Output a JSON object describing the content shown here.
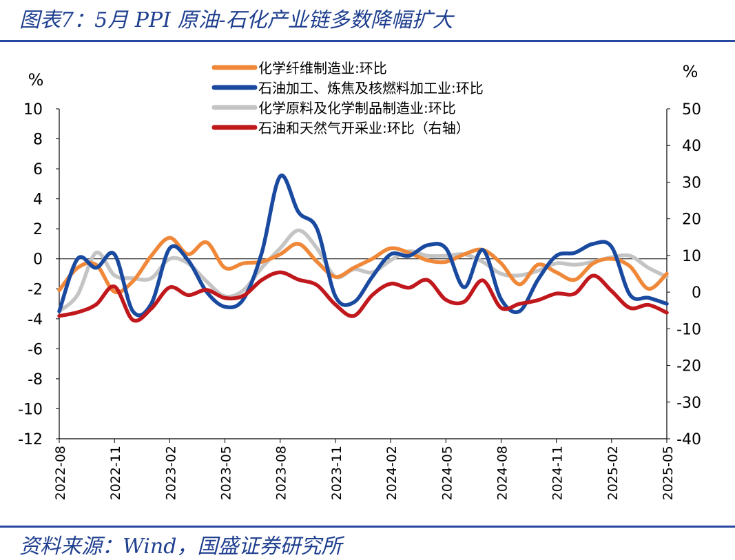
{
  "header": {
    "title": "图表7：5月 PPI 原油-石化产业链多数降幅扩大"
  },
  "footer": {
    "source": "资料来源：Wind，国盛证券研究所"
  },
  "chart_data": {
    "type": "line",
    "left_axis": {
      "unit": "%",
      "ylim": [
        -12,
        10
      ],
      "ticks": [
        "10",
        "8",
        "6",
        "4",
        "2",
        "0",
        "-2",
        "-4",
        "-6",
        "-8",
        "-10",
        "-12"
      ]
    },
    "right_axis": {
      "unit": "%",
      "ylim": [
        -40,
        50
      ],
      "ticks": [
        "50",
        "40",
        "30",
        "20",
        "10",
        "0",
        "-10",
        "-20",
        "-30",
        "-40"
      ]
    },
    "x_ticks": [
      "2022-08",
      "2022-11",
      "2023-02",
      "2023-05",
      "2023-08",
      "2023-11",
      "2024-02",
      "2024-05",
      "2024-08",
      "2024-11",
      "2025-02",
      "2025-05"
    ],
    "x": [
      "2022-08",
      "2022-09",
      "2022-10",
      "2022-11",
      "2022-12",
      "2023-01",
      "2023-02",
      "2023-03",
      "2023-04",
      "2023-05",
      "2023-06",
      "2023-07",
      "2023-08",
      "2023-09",
      "2023-10",
      "2023-11",
      "2023-12",
      "2024-01",
      "2024-02",
      "2024-03",
      "2024-04",
      "2024-05",
      "2024-06",
      "2024-07",
      "2024-08",
      "2024-09",
      "2024-10",
      "2024-11",
      "2024-12",
      "2025-01",
      "2025-02",
      "2025-03",
      "2025-04",
      "2025-05"
    ],
    "legend_position": "top-center",
    "series": [
      {
        "name": "化学纤维制造业:环比",
        "axis": "left",
        "color": "#f0883a",
        "values": [
          -2.1,
          -0.6,
          -0.4,
          -2.2,
          -1.5,
          0.2,
          1.4,
          0.3,
          1.1,
          -0.6,
          -0.3,
          -0.2,
          0.3,
          1.0,
          -0.2,
          -1.2,
          -0.6,
          0.0,
          0.7,
          0.4,
          -0.1,
          -0.2,
          0.3,
          0.6,
          -0.3,
          -1.7,
          -0.4,
          -0.9,
          -1.4,
          -0.3,
          0.0,
          -0.5,
          -2.0,
          -1.0
        ]
      },
      {
        "name": "石油加工、炼焦及核燃料加工业:环比",
        "axis": "left",
        "color": "#1a4aa0",
        "values": [
          -3.5,
          0.0,
          -0.6,
          0.3,
          -3.5,
          -3.0,
          0.7,
          -0.1,
          -2.2,
          -3.2,
          -2.7,
          0.4,
          5.5,
          3.1,
          2.0,
          -2.5,
          -2.9,
          -1.2,
          0.3,
          0.2,
          0.9,
          0.7,
          -1.9,
          0.6,
          -2.7,
          -3.5,
          -1.4,
          0.2,
          0.4,
          1.0,
          0.8,
          -2.4,
          -2.6,
          -3.0
        ]
      },
      {
        "name": "化学原料及化学制品制造业:环比",
        "axis": "left",
        "color": "#c4c4c4",
        "values": [
          -3.5,
          -2.4,
          0.4,
          -1.1,
          -1.3,
          -1.3,
          0.0,
          -0.3,
          -1.5,
          -2.5,
          -2.1,
          -0.6,
          0.7,
          1.9,
          0.7,
          -1.2,
          -0.7,
          -0.9,
          -0.1,
          0.5,
          0.2,
          0.2,
          0.3,
          -0.2,
          -1.0,
          -1.1,
          -0.8,
          -0.3,
          -0.4,
          -0.2,
          0.1,
          0.2,
          -0.6,
          -1.2
        ]
      },
      {
        "name": "石油和天然气开采业:环比（右轴）",
        "axis": "right",
        "color": "#c0181c",
        "values": [
          -6.5,
          -5.5,
          -3.4,
          1.5,
          -7.6,
          -4.5,
          1.3,
          -0.8,
          0.6,
          -1.6,
          -1.0,
          3.3,
          5.4,
          3.4,
          1.9,
          -3.4,
          -6.5,
          -0.8,
          2.3,
          1.2,
          3.3,
          -2.1,
          -2.6,
          3.2,
          -4.3,
          -3.2,
          -2.2,
          -0.4,
          -0.4,
          4.5,
          0.3,
          -4.3,
          -3.5,
          -5.6
        ]
      }
    ]
  }
}
